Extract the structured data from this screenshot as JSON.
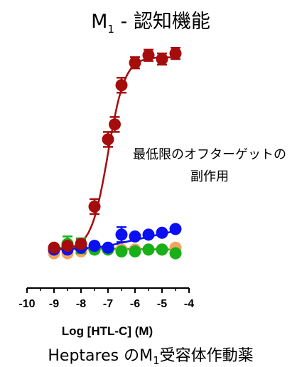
{
  "chart_data": {
    "type": "scatter",
    "title": {
      "prefix": "M",
      "subscript": "1",
      "suffix": " -  認知機能"
    },
    "xlabel": "Log [HTL-C] (M)",
    "ylabel": "",
    "xlim": [
      -10,
      -4
    ],
    "x_ticks": [
      -10,
      -9,
      -8,
      -7,
      -6,
      -5,
      -4
    ],
    "x_tick_labels": [
      "-10",
      "-9",
      "-8",
      "-7",
      "-6",
      "-5",
      "-4"
    ],
    "ylim": [
      -5,
      110
    ],
    "annotation": [
      "最低限のオフターゲットの",
      "副作用"
    ],
    "caption": {
      "prefix": "Heptares のM",
      "subscript": "1",
      "suffix": "受容体作動薬"
    },
    "colors": {
      "red": "#a50c0c",
      "blue": "#0a10f0",
      "green": "#18b018",
      "orange": "#f4a460"
    },
    "series": [
      {
        "color": "red",
        "x": [
          -9.0,
          -8.5,
          -8.0,
          -7.5,
          -7.0,
          -6.75,
          -6.5,
          -6.0,
          -5.5,
          -5.0,
          -4.5
        ],
        "y": [
          1,
          2,
          3,
          23,
          59,
          67,
          88,
          100,
          104,
          102,
          105
        ],
        "err": [
          0,
          0,
          2,
          4,
          4,
          4,
          4,
          3,
          3,
          3,
          3
        ],
        "fit": {
          "bottom": 0,
          "top": 103,
          "logEC50": -7.0,
          "hill": 1.4
        }
      },
      {
        "color": "blue",
        "x": [
          -9.0,
          -8.5,
          -8.0,
          -7.5,
          -7.0,
          -6.5,
          -6.0,
          -5.5,
          -5.0,
          -4.5
        ],
        "y": [
          0,
          0,
          1,
          2,
          1,
          8,
          7,
          8,
          9,
          11
        ],
        "err": [
          0,
          0,
          0,
          0,
          0,
          4,
          0,
          0,
          0,
          0
        ],
        "fit": {
          "x": [
            -9.0,
            -7.5,
            -7.0,
            -4.5
          ],
          "y": [
            0,
            1,
            2,
            10
          ]
        }
      },
      {
        "color": "green",
        "x": [
          -9.0,
          -8.5,
          -8.0,
          -7.5,
          -7.0,
          -6.5,
          -6.0,
          -5.5,
          -5.0,
          -4.5
        ],
        "y": [
          0,
          3,
          2,
          0,
          0,
          -1,
          -1,
          0,
          0,
          -2
        ],
        "err": [
          0,
          4,
          4,
          0,
          0,
          0,
          0,
          0,
          0,
          0
        ],
        "fit": {
          "x": [
            -9.0,
            -4.5
          ],
          "y": [
            1,
            0
          ]
        }
      },
      {
        "color": "orange",
        "x": [
          -9.0,
          -8.5,
          -8.0,
          -7.5,
          -7.0,
          -6.5,
          -6.0,
          -5.5,
          -5.0,
          -4.5
        ],
        "y": [
          -2,
          -2,
          -1,
          0,
          0,
          0,
          0,
          0,
          0,
          1
        ],
        "err": [
          0,
          0,
          0,
          0,
          0,
          0,
          0,
          0,
          0,
          0
        ],
        "fit": {
          "x": [
            -9.0,
            -4.5
          ],
          "y": [
            0,
            0
          ]
        }
      }
    ]
  }
}
